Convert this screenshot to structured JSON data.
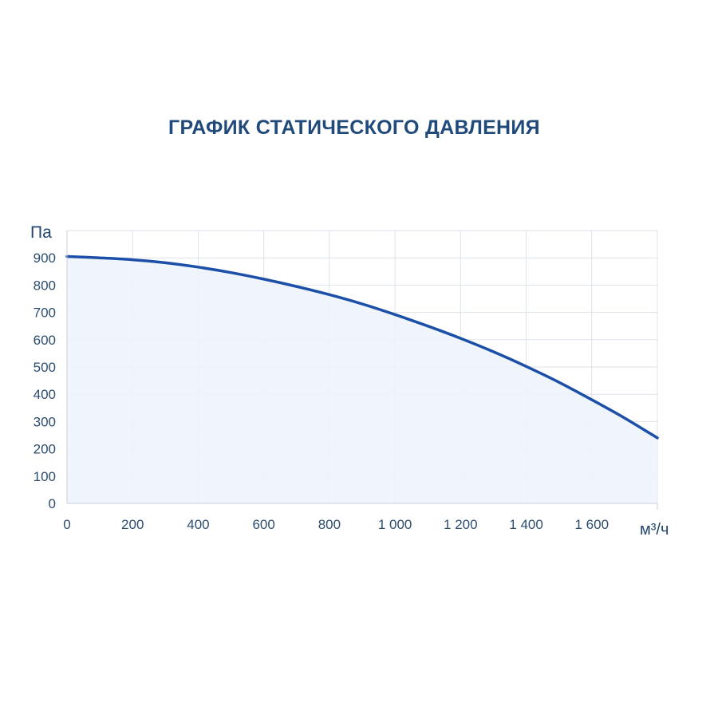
{
  "chart_data": {
    "type": "area",
    "title": "ГРАФИК СТАТИЧЕСКОГО ДАВЛЕНИЯ",
    "ylabel": "Па",
    "xlabel": "м³/ч",
    "xlim": [
      0,
      1800
    ],
    "ylim": [
      0,
      1000
    ],
    "grid": true,
    "x_ticks": [
      0,
      200,
      400,
      600,
      800,
      1000,
      1200,
      1400,
      1600
    ],
    "x_tick_labels": [
      "0",
      "200",
      "400",
      "600",
      "800",
      "1 000",
      "1 200",
      "1 400",
      "1 600"
    ],
    "x_grid": [
      0,
      200,
      400,
      600,
      800,
      1000,
      1200,
      1400,
      1600,
      1800
    ],
    "y_ticks": [
      0,
      100,
      200,
      300,
      400,
      500,
      600,
      700,
      800,
      900
    ],
    "y_tick_labels": [
      "0",
      "100",
      "200",
      "300",
      "400",
      "500",
      "600",
      "700",
      "800",
      "900"
    ],
    "y_grid": [
      0,
      100,
      200,
      300,
      400,
      500,
      600,
      700,
      800,
      900,
      1000
    ],
    "series": [
      {
        "color": "#1b4fa8",
        "fill": "#eef3fb",
        "x": [
          0,
          100,
          200,
          300,
          400,
          500,
          600,
          700,
          800,
          900,
          1000,
          1100,
          1200,
          1300,
          1400,
          1500,
          1600,
          1700,
          1800
        ],
        "y": [
          905,
          900,
          893,
          882,
          866,
          846,
          822,
          795,
          765,
          731,
          692,
          650,
          605,
          556,
          502,
          444,
          380,
          313,
          240
        ]
      }
    ]
  }
}
